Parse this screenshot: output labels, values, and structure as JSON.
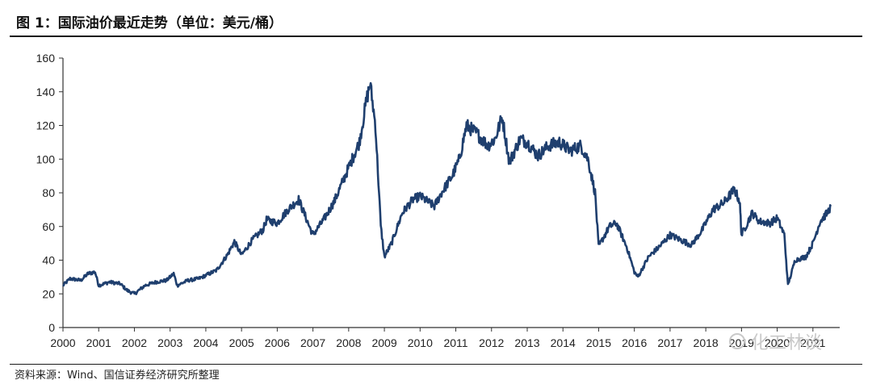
{
  "title": "图 1：国际油价最近走势（单位：美元/桶）",
  "source": "资料来源：Wind、国信证券经济研究所整理",
  "watermark": "化工林谈",
  "colors": {
    "line": "#1f3f6e",
    "axis": "#333333"
  },
  "chart_data": {
    "type": "line",
    "title": "",
    "xlabel": "",
    "ylabel": "",
    "ylim": [
      0,
      160
    ],
    "yticks": [
      0,
      20,
      40,
      60,
      80,
      100,
      120,
      140,
      160
    ],
    "xticks": [
      "2000",
      "2001",
      "2002",
      "2003",
      "2004",
      "2005",
      "2006",
      "2007",
      "2008",
      "2009",
      "2010",
      "2011",
      "2012",
      "2013",
      "2014",
      "2015",
      "2016",
      "2017",
      "2018",
      "2019",
      "2020",
      "2021"
    ],
    "grid": false,
    "legend": "none",
    "series": [
      {
        "x": [
          2000.0,
          2000.2,
          2000.5,
          2000.7,
          2000.9,
          2001.0,
          2001.3,
          2001.6,
          2001.8,
          2002.0,
          2002.3,
          2002.6,
          2002.9,
          2003.1,
          2003.2,
          2003.5,
          2003.8,
          2004.0,
          2004.3,
          2004.6,
          2004.8,
          2005.0,
          2005.3,
          2005.6,
          2005.7,
          2006.0,
          2006.3,
          2006.6,
          2006.9,
          2007.0,
          2007.3,
          2007.6,
          2007.9,
          2008.0,
          2008.3,
          2008.5,
          2008.6,
          2008.75,
          2008.9,
          2009.0,
          2009.2,
          2009.5,
          2009.8,
          2010.0,
          2010.4,
          2010.6,
          2010.9,
          2011.1,
          2011.3,
          2011.6,
          2011.9,
          2012.1,
          2012.3,
          2012.5,
          2012.8,
          2013.0,
          2013.3,
          2013.6,
          2013.9,
          2014.2,
          2014.5,
          2014.7,
          2014.9,
          2015.0,
          2015.3,
          2015.5,
          2015.8,
          2016.0,
          2016.1,
          2016.4,
          2016.7,
          2017.0,
          2017.3,
          2017.6,
          2017.9,
          2018.2,
          2018.5,
          2018.8,
          2018.95,
          2019.0,
          2019.3,
          2019.5,
          2019.8,
          2020.0,
          2020.2,
          2020.3,
          2020.5,
          2020.8,
          2021.0,
          2021.2,
          2021.4,
          2021.5
        ],
        "y": [
          25,
          29,
          28,
          32,
          33,
          25,
          27,
          26,
          22,
          20,
          25,
          27,
          28,
          32,
          25,
          28,
          29,
          31,
          34,
          43,
          51,
          43,
          52,
          58,
          64,
          62,
          70,
          76,
          60,
          55,
          64,
          75,
          90,
          95,
          110,
          135,
          145,
          120,
          60,
          42,
          50,
          68,
          76,
          78,
          72,
          80,
          90,
          100,
          120,
          115,
          108,
          112,
          125,
          98,
          112,
          110,
          102,
          108,
          110,
          105,
          108,
          100,
          80,
          48,
          60,
          62,
          47,
          33,
          30,
          42,
          48,
          55,
          52,
          49,
          58,
          70,
          74,
          82,
          75,
          55,
          68,
          63,
          62,
          65,
          55,
          25,
          40,
          42,
          50,
          63,
          68,
          72
        ]
      }
    ]
  }
}
